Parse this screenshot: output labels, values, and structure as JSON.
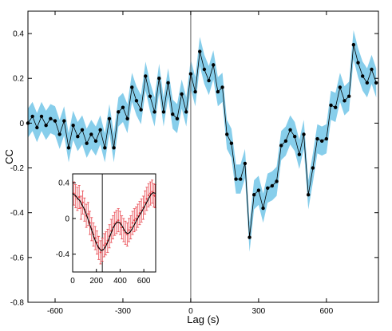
{
  "chart_data": [
    {
      "type": "line",
      "xlabel": "Lag (s)",
      "ylabel": "CC",
      "xlim": [
        -720,
        830
      ],
      "ylim": [
        -0.8,
        0.5
      ],
      "xticks": [
        "-600",
        "-300",
        "0",
        "300",
        "600"
      ],
      "xtick_values": [
        -600,
        -300,
        0,
        300,
        600
      ],
      "yticks": [
        "0.4",
        "0.2",
        "0",
        "-0.2",
        "-0.4",
        "-0.6",
        "-0.8"
      ],
      "ytick_values": [
        0.4,
        0.2,
        0,
        -0.2,
        -0.4,
        -0.6,
        -0.8
      ],
      "vline_x": 0,
      "band_half_width": 0.065,
      "colors": {
        "band": "#87ceeb",
        "line": "#000000",
        "marker": "#000000"
      },
      "series": [
        {
          "x": [
            -720,
            -700,
            -680,
            -660,
            -640,
            -620,
            -600,
            -580,
            -560,
            -540,
            -520,
            -500,
            -480,
            -460,
            -440,
            -420,
            -400,
            -380,
            -360,
            -340,
            -320,
            -300,
            -280,
            -260,
            -240,
            -220,
            -200,
            -180,
            -160,
            -140,
            -120,
            -100,
            -80,
            -60,
            -40,
            -20,
            0,
            20,
            40,
            60,
            80,
            100,
            120,
            140,
            160,
            180,
            200,
            220,
            240,
            260,
            280,
            300,
            320,
            340,
            360,
            380,
            400,
            420,
            440,
            460,
            480,
            500,
            520,
            540,
            560,
            580,
            600,
            620,
            640,
            660,
            680,
            700,
            720,
            740,
            760,
            780,
            800,
            820
          ],
          "y": [
            0.0,
            0.03,
            -0.02,
            0.03,
            -0.01,
            0.02,
            0.01,
            -0.05,
            0.01,
            -0.11,
            -0.01,
            -0.06,
            -0.03,
            -0.09,
            -0.05,
            -0.08,
            -0.03,
            -0.11,
            0.02,
            -0.11,
            0.05,
            0.07,
            0.02,
            0.16,
            0.1,
            0.06,
            0.21,
            0.12,
            0.05,
            0.2,
            0.05,
            0.18,
            0.04,
            0.02,
            0.13,
            0.05,
            0.22,
            0.14,
            0.32,
            0.24,
            0.19,
            0.26,
            0.14,
            0.16,
            -0.05,
            -0.09,
            -0.25,
            -0.25,
            -0.18,
            -0.51,
            -0.32,
            -0.3,
            -0.38,
            -0.29,
            -0.28,
            -0.26,
            -0.1,
            -0.08,
            -0.03,
            -0.06,
            -0.14,
            -0.05,
            -0.32,
            -0.2,
            -0.07,
            -0.08,
            -0.07,
            0.08,
            0.07,
            0.16,
            0.1,
            0.12,
            0.35,
            0.27,
            0.21,
            0.18,
            0.24,
            0.18
          ]
        }
      ]
    },
    {
      "type": "line",
      "xlim": [
        0,
        700
      ],
      "ylim": [
        -0.6,
        0.5
      ],
      "xticks": [
        "0",
        "200",
        "400",
        "600"
      ],
      "xtick_values": [
        0,
        200,
        400,
        600
      ],
      "yticks": [
        "0.4",
        "0",
        "-0.4"
      ],
      "ytick_values": [
        0.4,
        0,
        -0.4
      ],
      "vline_x": 250,
      "error_bar": 0.13,
      "colors": {
        "points": "#e8424a",
        "line": "#000000"
      },
      "series": [
        {
          "x": [
            10,
            25,
            40,
            55,
            70,
            85,
            100,
            115,
            130,
            145,
            160,
            175,
            190,
            205,
            220,
            235,
            250,
            265,
            280,
            295,
            310,
            325,
            340,
            355,
            370,
            385,
            400,
            415,
            430,
            445,
            460,
            475,
            490,
            505,
            520,
            535,
            550,
            565,
            580,
            595,
            610,
            625,
            640,
            655,
            670,
            685,
            695
          ],
          "y": [
            0.28,
            0.25,
            0.22,
            0.24,
            0.12,
            0.18,
            0.1,
            0.03,
            0.05,
            -0.05,
            -0.12,
            -0.18,
            -0.22,
            -0.27,
            -0.33,
            -0.38,
            -0.35,
            -0.3,
            -0.28,
            -0.25,
            -0.2,
            -0.14,
            -0.1,
            -0.06,
            -0.04,
            -0.02,
            -0.05,
            -0.1,
            -0.13,
            -0.16,
            -0.18,
            -0.13,
            -0.1,
            -0.05,
            -0.02,
            0.0,
            0.03,
            0.06,
            0.09,
            0.12,
            0.18,
            0.22,
            0.26,
            0.28,
            0.3,
            0.26,
            0.25
          ]
        },
        {
          "x": [
            0,
            20,
            40,
            60,
            80,
            100,
            120,
            140,
            160,
            180,
            200,
            220,
            240,
            260,
            280,
            300,
            320,
            340,
            360,
            380,
            400,
            420,
            440,
            460,
            480,
            500,
            520,
            540,
            560,
            580,
            600,
            620,
            640,
            660,
            680,
            700
          ],
          "y": [
            0.28,
            0.26,
            0.23,
            0.2,
            0.15,
            0.1,
            0.03,
            -0.05,
            -0.13,
            -0.21,
            -0.28,
            -0.33,
            -0.36,
            -0.35,
            -0.31,
            -0.25,
            -0.18,
            -0.11,
            -0.06,
            -0.04,
            -0.05,
            -0.09,
            -0.14,
            -0.17,
            -0.16,
            -0.12,
            -0.07,
            -0.02,
            0.03,
            0.07,
            0.12,
            0.17,
            0.22,
            0.27,
            0.29,
            0.28
          ]
        }
      ]
    }
  ]
}
